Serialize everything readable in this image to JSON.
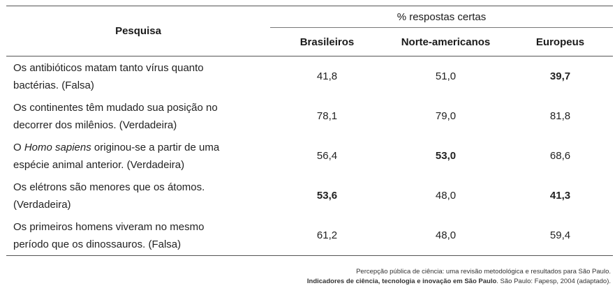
{
  "table": {
    "header": {
      "pesquisa": "Pesquisa",
      "group": "% respostas certas",
      "columns": [
        "Brasileiros",
        "Norte-americanos",
        "Europeus"
      ]
    },
    "rows": [
      {
        "question_lines": [
          "Os antibióticos matam tanto vírus quanto",
          "bactérias. (Falsa)"
        ],
        "values": [
          "41,8",
          "51,0",
          "39,7"
        ]
      },
      {
        "question_lines": [
          "Os continentes têm mudado sua posição no",
          "decorrer dos milênios. (Verdadeira)"
        ],
        "values": [
          "78,1",
          "79,0",
          "81,8"
        ]
      },
      {
        "question_prefix": "O ",
        "question_italic": "Homo sapiens",
        "question_suffix": " originou-se a partir de uma",
        "question_line2": "espécie animal anterior. (Verdadeira)",
        "values": [
          "56,4",
          "53,0",
          "68,6"
        ]
      },
      {
        "question_lines": [
          "Os elétrons são menores que os átomos.",
          "(Verdadeira)"
        ],
        "values": [
          "53,6",
          "48,0",
          "41,3"
        ]
      },
      {
        "question_lines": [
          "Os primeiros homens viveram no mesmo",
          "período que os dinossauros. (Falsa)"
        ],
        "values": [
          "61,2",
          "48,0",
          "59,4"
        ]
      }
    ]
  },
  "source": {
    "line1": "Percepção pública de ciência: uma revisão metodológica e resultados para São Paulo.",
    "line2_bold": "Indicadores de ciência, tecnologia e inovação em São Paulo",
    "line2_rest": ". São Paulo: Fapesp, 2004 (adaptado)."
  }
}
